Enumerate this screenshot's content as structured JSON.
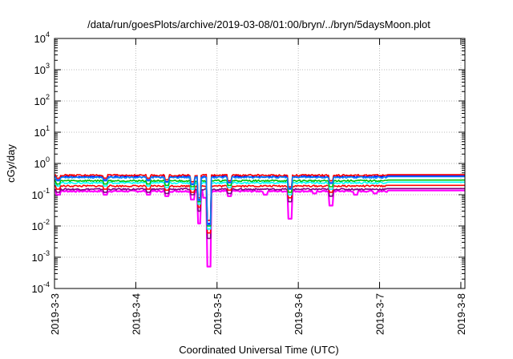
{
  "chart_data": {
    "type": "line",
    "title": "/data/run/goesPlots/archive/2019-03-08/01:00/bryn/../bryn/5daysMoon.plot",
    "xlabel": "Coordinated Universal Time (UTC)",
    "ylabel": "cGy/day",
    "yscale": "log",
    "ylim": [
      0.0001,
      10000
    ],
    "xlim": [
      0,
      5.05
    ],
    "y_ticks": [
      {
        "base": "10",
        "exp": "-4"
      },
      {
        "base": "10",
        "exp": "-3"
      },
      {
        "base": "10",
        "exp": "-2"
      },
      {
        "base": "10",
        "exp": "-1"
      },
      {
        "base": "10",
        "exp": "0"
      },
      {
        "base": "10",
        "exp": "1"
      },
      {
        "base": "10",
        "exp": "2"
      },
      {
        "base": "10",
        "exp": "3"
      },
      {
        "base": "10",
        "exp": "4"
      }
    ],
    "x_ticks": [
      "2019-3-3",
      "2019-3-4",
      "2019-3-5",
      "2019-3-6",
      "2019-3-7",
      "2019-3-8"
    ],
    "grid": true,
    "legend": "none",
    "series": [
      {
        "color": "#ff00ff",
        "base": 0.13,
        "dips": [
          [
            0.05,
            0.1
          ],
          [
            0.62,
            0.1
          ],
          [
            1.15,
            0.1
          ],
          [
            1.38,
            0.09
          ],
          [
            1.7,
            0.07
          ],
          [
            1.78,
            0.012
          ],
          [
            1.85,
            0.08
          ],
          [
            1.9,
            0.0005
          ],
          [
            2.15,
            0.09
          ],
          [
            2.6,
            0.1
          ],
          [
            2.9,
            0.017
          ],
          [
            3.2,
            0.11
          ],
          [
            3.4,
            0.045
          ],
          [
            3.7,
            0.1
          ],
          [
            3.95,
            0.11
          ]
        ]
      },
      {
        "color": "#800080",
        "base": 0.15,
        "dips": [
          [
            0.05,
            0.12
          ],
          [
            0.62,
            0.12
          ],
          [
            1.15,
            0.12
          ],
          [
            1.38,
            0.11
          ],
          [
            1.7,
            0.1
          ],
          [
            1.78,
            0.03
          ],
          [
            1.9,
            0.004
          ],
          [
            2.15,
            0.11
          ],
          [
            2.9,
            0.06
          ],
          [
            3.4,
            0.09
          ]
        ]
      },
      {
        "color": "#ff0000",
        "base": 0.19,
        "dips": [
          [
            0.05,
            0.15
          ],
          [
            0.62,
            0.15
          ],
          [
            1.15,
            0.15
          ],
          [
            1.38,
            0.14
          ],
          [
            1.7,
            0.12
          ],
          [
            1.78,
            0.04
          ],
          [
            1.9,
            0.006
          ],
          [
            2.15,
            0.14
          ],
          [
            2.9,
            0.08
          ],
          [
            3.4,
            0.12
          ]
        ]
      },
      {
        "color": "#00ffff",
        "base": 0.24,
        "dips": [
          [
            0.05,
            0.19
          ],
          [
            0.62,
            0.19
          ],
          [
            1.15,
            0.19
          ],
          [
            1.38,
            0.17
          ],
          [
            1.7,
            0.15
          ],
          [
            1.78,
            0.05
          ],
          [
            1.9,
            0.008
          ],
          [
            2.15,
            0.17
          ],
          [
            2.9,
            0.1
          ],
          [
            3.4,
            0.15
          ]
        ]
      },
      {
        "color": "#00c000",
        "base": 0.28,
        "dips": [
          [
            0.05,
            0.22
          ],
          [
            0.62,
            0.22
          ],
          [
            1.15,
            0.22
          ],
          [
            1.38,
            0.2
          ],
          [
            1.7,
            0.18
          ],
          [
            1.78,
            0.06
          ],
          [
            1.9,
            0.01
          ],
          [
            2.15,
            0.2
          ],
          [
            2.9,
            0.12
          ],
          [
            3.4,
            0.18
          ]
        ]
      },
      {
        "color": "#0000ff",
        "base": 0.38,
        "dips": [
          [
            0.05,
            0.3
          ],
          [
            0.62,
            0.3
          ],
          [
            1.15,
            0.3
          ],
          [
            1.38,
            0.26
          ],
          [
            1.7,
            0.22
          ],
          [
            1.78,
            0.07
          ],
          [
            1.9,
            0.012
          ],
          [
            2.15,
            0.25
          ],
          [
            2.9,
            0.16
          ],
          [
            3.4,
            0.24
          ]
        ]
      },
      {
        "color": "#ff0000",
        "base": 0.42,
        "dips": [
          [
            0.05,
            0.34
          ],
          [
            0.62,
            0.34
          ],
          [
            1.15,
            0.34
          ],
          [
            1.38,
            0.3
          ],
          [
            1.7,
            0.26
          ],
          [
            1.78,
            0.08
          ],
          [
            1.9,
            0.015
          ],
          [
            2.15,
            0.28
          ],
          [
            2.9,
            0.18
          ],
          [
            3.4,
            0.28
          ]
        ]
      },
      {
        "color": "#0080ff",
        "base": 0.36,
        "dips": [
          [
            0.05,
            0.28
          ],
          [
            0.62,
            0.28
          ],
          [
            1.15,
            0.28
          ],
          [
            1.38,
            0.25
          ],
          [
            1.7,
            0.21
          ],
          [
            1.78,
            0.065
          ],
          [
            1.9,
            0.011
          ],
          [
            2.15,
            0.24
          ],
          [
            2.9,
            0.15
          ],
          [
            3.4,
            0.23
          ]
        ]
      }
    ]
  }
}
